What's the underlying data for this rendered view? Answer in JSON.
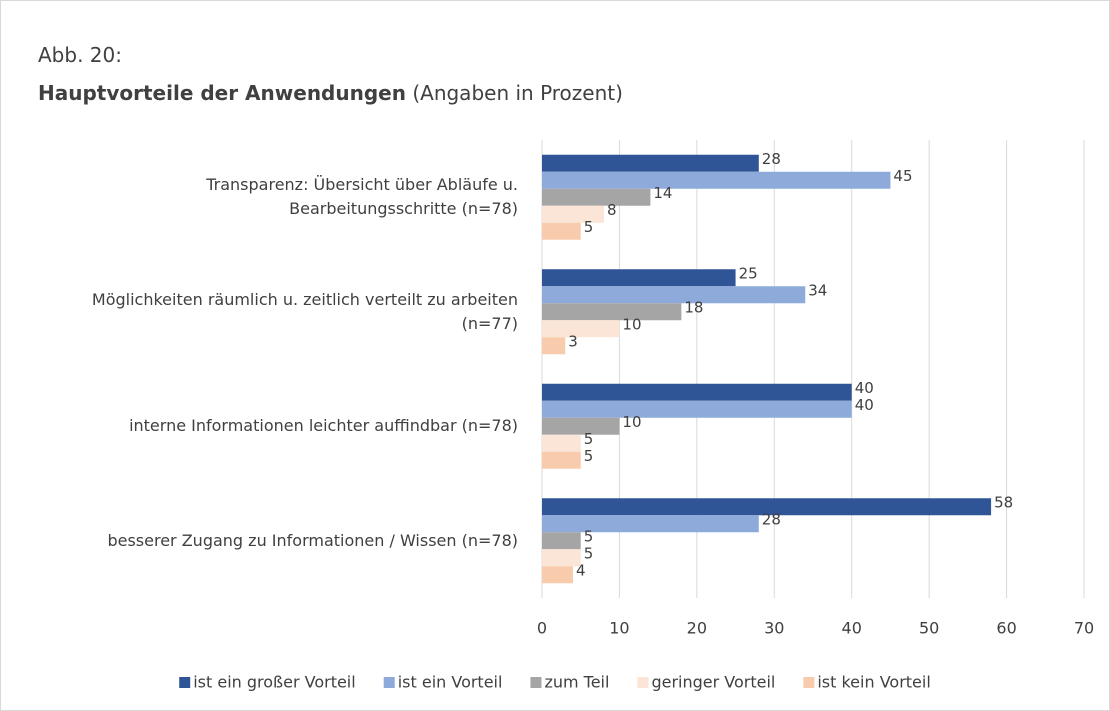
{
  "chart_data": {
    "type": "bar",
    "orientation": "horizontal",
    "title_prefix": "Abb. 20:",
    "title": "Hauptvorteile der Anwendungen",
    "subtitle": "(Angaben in Prozent)",
    "categories": [
      "Transparenz: Übersicht über Abläufe u. Bearbeitungsschritte (n=78)",
      "Möglichkeiten räumlich u. zeitlich verteilt zu arbeiten (n=77)",
      "interne Informationen leichter auffindbar (n=78)",
      "besserer Zugang zu Informationen / Wissen (n=78)"
    ],
    "series": [
      {
        "name": "ist ein großer Vorteil",
        "color": "#2f5597",
        "values": [
          28,
          25,
          40,
          58
        ]
      },
      {
        "name": "ist ein Vorteil",
        "color": "#8eaadb",
        "values": [
          45,
          34,
          40,
          28
        ]
      },
      {
        "name": "zum Teil",
        "color": "#a5a5a5",
        "values": [
          14,
          18,
          10,
          5
        ]
      },
      {
        "name": "geringer Vorteil",
        "color": "#fbe5d6",
        "values": [
          8,
          10,
          5,
          5
        ]
      },
      {
        "name": "ist kein Vorteil",
        "color": "#f8cbad",
        "values": [
          5,
          3,
          5,
          4
        ]
      }
    ],
    "xlim": [
      0,
      70
    ],
    "xticks": [
      0,
      10,
      20,
      30,
      40,
      50,
      60,
      70
    ],
    "grid": true,
    "legend": "bottom"
  }
}
